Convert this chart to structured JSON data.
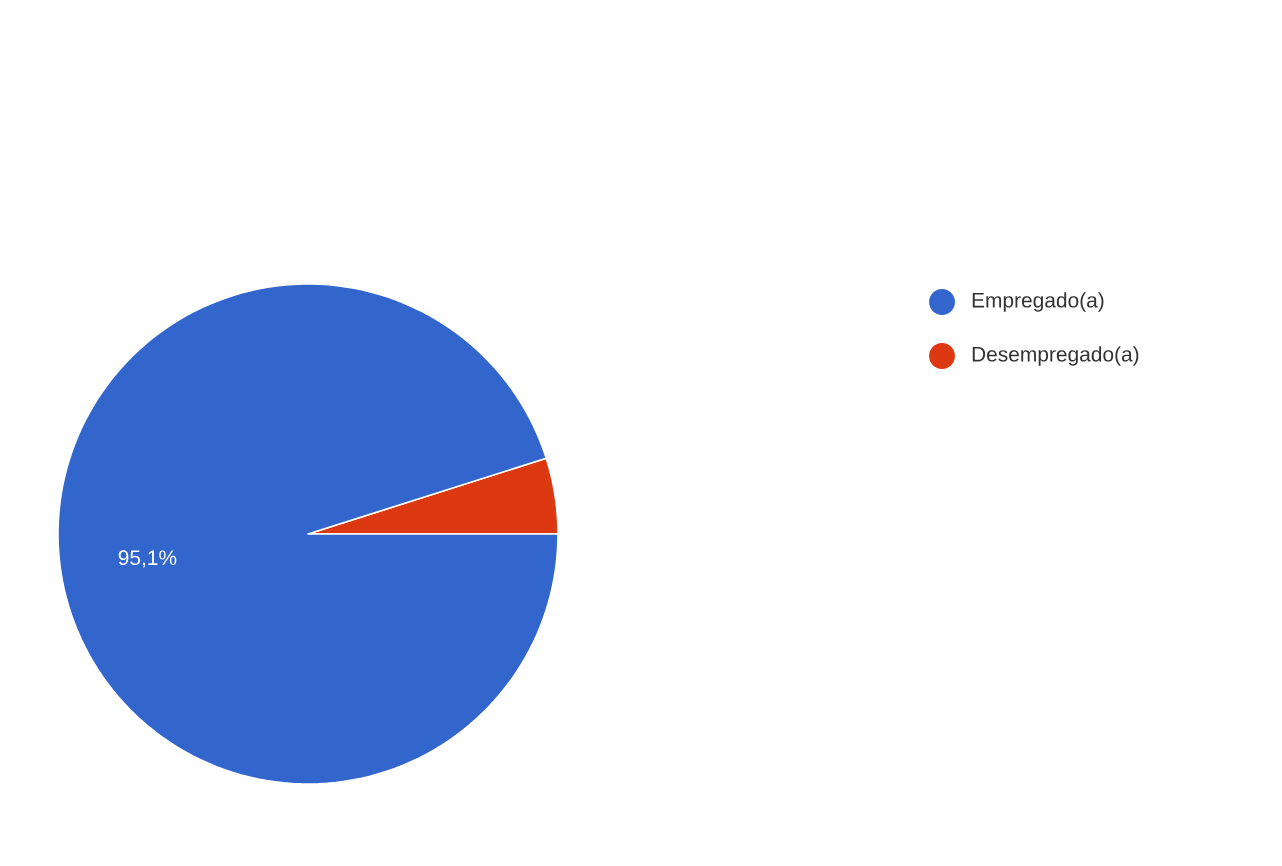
{
  "chart_data": {
    "type": "pie",
    "categories": [
      "Empregado(a)",
      "Desempregado(a)"
    ],
    "values": [
      95.1,
      4.9
    ],
    "colors": [
      "#3366cc",
      "#dc3912"
    ],
    "value_labels": [
      "95,1%",
      null
    ],
    "legend": "right"
  }
}
